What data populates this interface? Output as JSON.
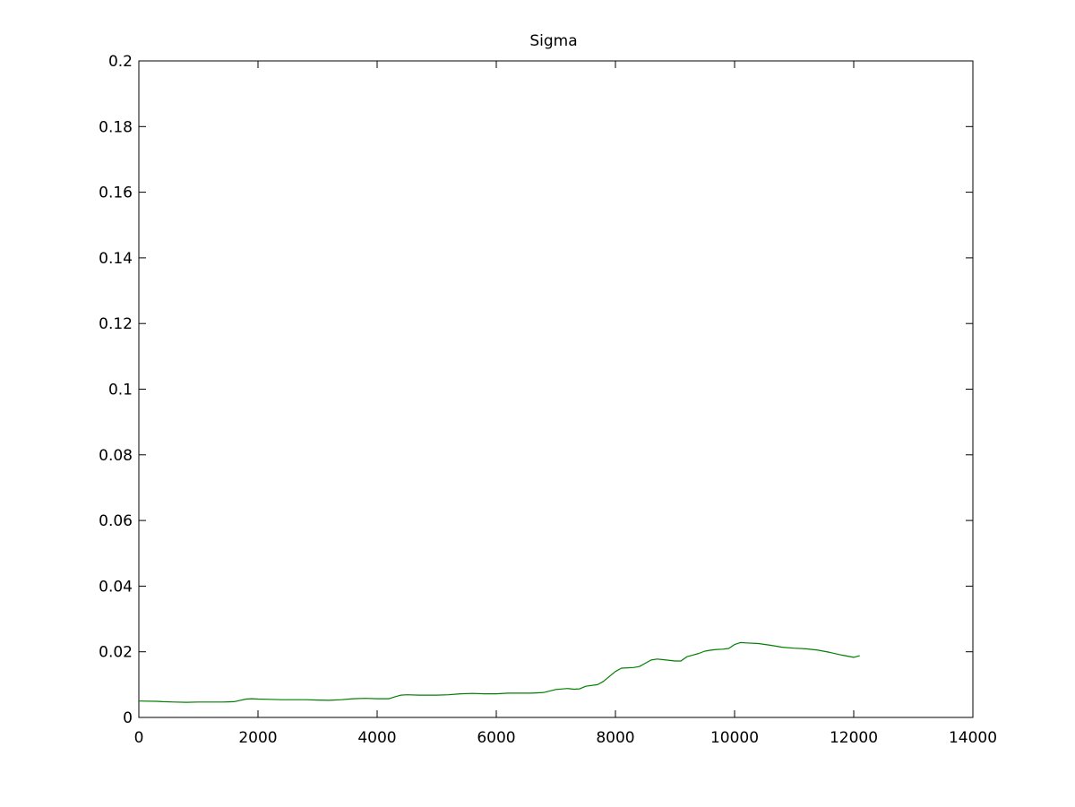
{
  "chart_data": {
    "type": "line",
    "title": "Sigma",
    "xlabel": "",
    "ylabel": "",
    "xlim": [
      0,
      14000
    ],
    "ylim": [
      0,
      0.2
    ],
    "x_ticks": [
      0,
      2000,
      4000,
      6000,
      8000,
      10000,
      12000,
      14000
    ],
    "x_tick_labels": [
      "0",
      "2000",
      "4000",
      "6000",
      "8000",
      "10000",
      "12000",
      "14000"
    ],
    "y_ticks": [
      0,
      0.02,
      0.04,
      0.06,
      0.08,
      0.1,
      0.12,
      0.14,
      0.16,
      0.18,
      0.2
    ],
    "y_tick_labels": [
      "0",
      "0.02",
      "0.04",
      "0.06",
      "0.08",
      "0.1",
      "0.12",
      "0.14",
      "0.16",
      "0.18",
      "0.2"
    ],
    "grid": false,
    "series": [
      {
        "color": "#007f00",
        "x": [
          0,
          300,
          400,
          600,
          800,
          1000,
          1200,
          1400,
          1600,
          1700,
          1800,
          1900,
          2000,
          2200,
          2400,
          2600,
          2800,
          3000,
          3200,
          3400,
          3600,
          3800,
          4000,
          4200,
          4300,
          4400,
          4500,
          4700,
          5000,
          5200,
          5400,
          5600,
          5800,
          6000,
          6200,
          6400,
          6600,
          6800,
          7000,
          7200,
          7300,
          7400,
          7500,
          7700,
          7800,
          8000,
          8100,
          8300,
          8400,
          8500,
          8600,
          8700,
          8800,
          9000,
          9100,
          9200,
          9300,
          9400,
          9500,
          9600,
          9700,
          9800,
          9900,
          10000,
          10100,
          10200,
          10400,
          10600,
          10800,
          11000,
          11200,
          11400,
          11600,
          11800,
          12000,
          12100
        ],
        "y": [
          0.005,
          0.0049,
          0.0048,
          0.0047,
          0.0046,
          0.0047,
          0.0047,
          0.0047,
          0.0048,
          0.0052,
          0.0056,
          0.0057,
          0.0056,
          0.0055,
          0.0054,
          0.0054,
          0.0054,
          0.0053,
          0.0052,
          0.0054,
          0.0057,
          0.0058,
          0.0057,
          0.0057,
          0.0063,
          0.0068,
          0.0069,
          0.0068,
          0.0068,
          0.0069,
          0.0072,
          0.0073,
          0.0072,
          0.0072,
          0.0074,
          0.0074,
          0.0074,
          0.0076,
          0.0085,
          0.0088,
          0.0086,
          0.0087,
          0.0095,
          0.01,
          0.011,
          0.014,
          0.015,
          0.0152,
          0.0155,
          0.0165,
          0.0175,
          0.0178,
          0.0176,
          0.0172,
          0.0172,
          0.0185,
          0.019,
          0.0195,
          0.0202,
          0.0205,
          0.0207,
          0.0208,
          0.021,
          0.0222,
          0.0228,
          0.0227,
          0.0225,
          0.022,
          0.0214,
          0.0211,
          0.0209,
          0.0205,
          0.0198,
          0.019,
          0.0183,
          0.0188
        ]
      }
    ]
  }
}
